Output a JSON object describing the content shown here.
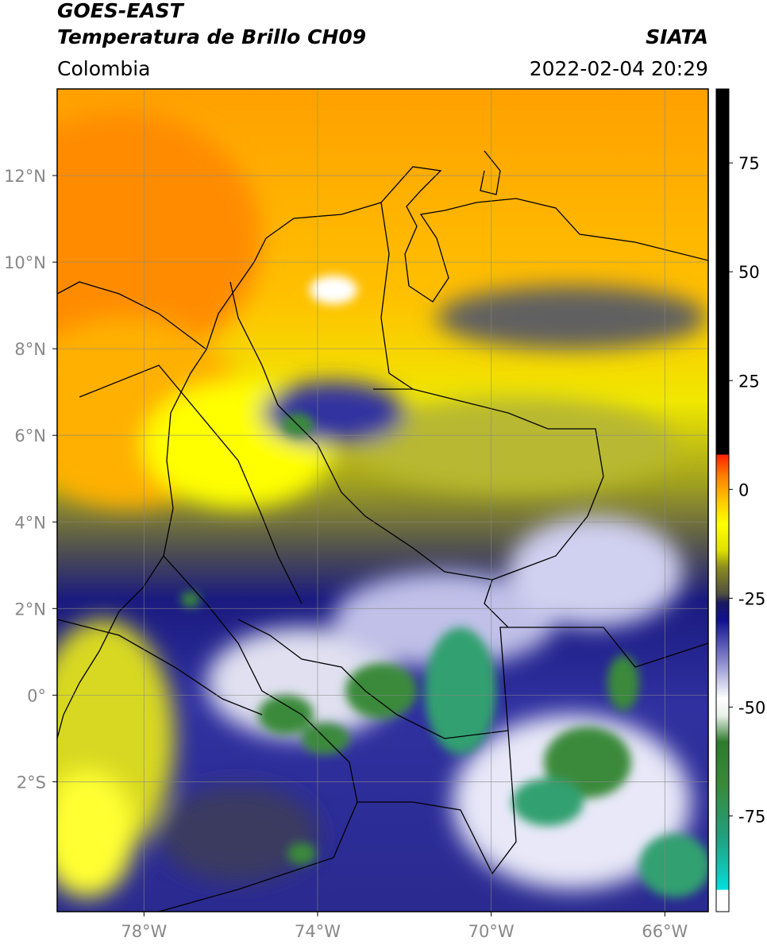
{
  "header": {
    "title": "GOES-EAST",
    "subtitle": "Temperatura de Brillo CH09",
    "source": "SIATA",
    "region": "Colombia",
    "datetime": "2022-02-04 20:29"
  },
  "map": {
    "xlim": [
      -80,
      -65
    ],
    "ylim": [
      -5,
      14
    ],
    "xticks": [
      {
        "value": -78,
        "label": "78°W"
      },
      {
        "value": -74,
        "label": "74°W"
      },
      {
        "value": -70,
        "label": "70°W"
      },
      {
        "value": -66,
        "label": "66°W"
      }
    ],
    "yticks": [
      {
        "value": 12,
        "label": "12°N"
      },
      {
        "value": 10,
        "label": "10°N"
      },
      {
        "value": 8,
        "label": "8°N"
      },
      {
        "value": 6,
        "label": "6°N"
      },
      {
        "value": 4,
        "label": "4°N"
      },
      {
        "value": 2,
        "label": "2°N"
      },
      {
        "value": 0,
        "label": "0°"
      },
      {
        "value": -2,
        "label": "2°S"
      }
    ],
    "grid": true
  },
  "colorbar": {
    "lim": [
      -97,
      92
    ],
    "ticks": [
      75,
      50,
      25,
      0,
      -25,
      -50,
      -75
    ],
    "stops": [
      {
        "value": -97,
        "color": "#ffffff"
      },
      {
        "value": -92,
        "color": "#ffffff"
      },
      {
        "value": -92,
        "color": "#00e0e0"
      },
      {
        "value": -88,
        "color": "#10c8b8"
      },
      {
        "value": -80,
        "color": "#20a080"
      },
      {
        "value": -68,
        "color": "#3a8a3a"
      },
      {
        "value": -58,
        "color": "#2e7a2e"
      },
      {
        "value": -52,
        "color": "#e8f0e8"
      },
      {
        "value": -48,
        "color": "#ffffff"
      },
      {
        "value": -40,
        "color": "#9090d0"
      },
      {
        "value": -30,
        "color": "#101090"
      },
      {
        "value": -26,
        "color": "#1a1a60"
      },
      {
        "value": -24,
        "color": "#505040"
      },
      {
        "value": -18,
        "color": "#8a8a20"
      },
      {
        "value": -14,
        "color": "#e0e000"
      },
      {
        "value": -8,
        "color": "#ffff00"
      },
      {
        "value": -3,
        "color": "#ffcc00"
      },
      {
        "value": 3,
        "color": "#ff8000"
      },
      {
        "value": 8,
        "color": "#ff2000"
      },
      {
        "value": 8,
        "color": "#000000"
      },
      {
        "value": 92,
        "color": "#000000"
      }
    ]
  }
}
